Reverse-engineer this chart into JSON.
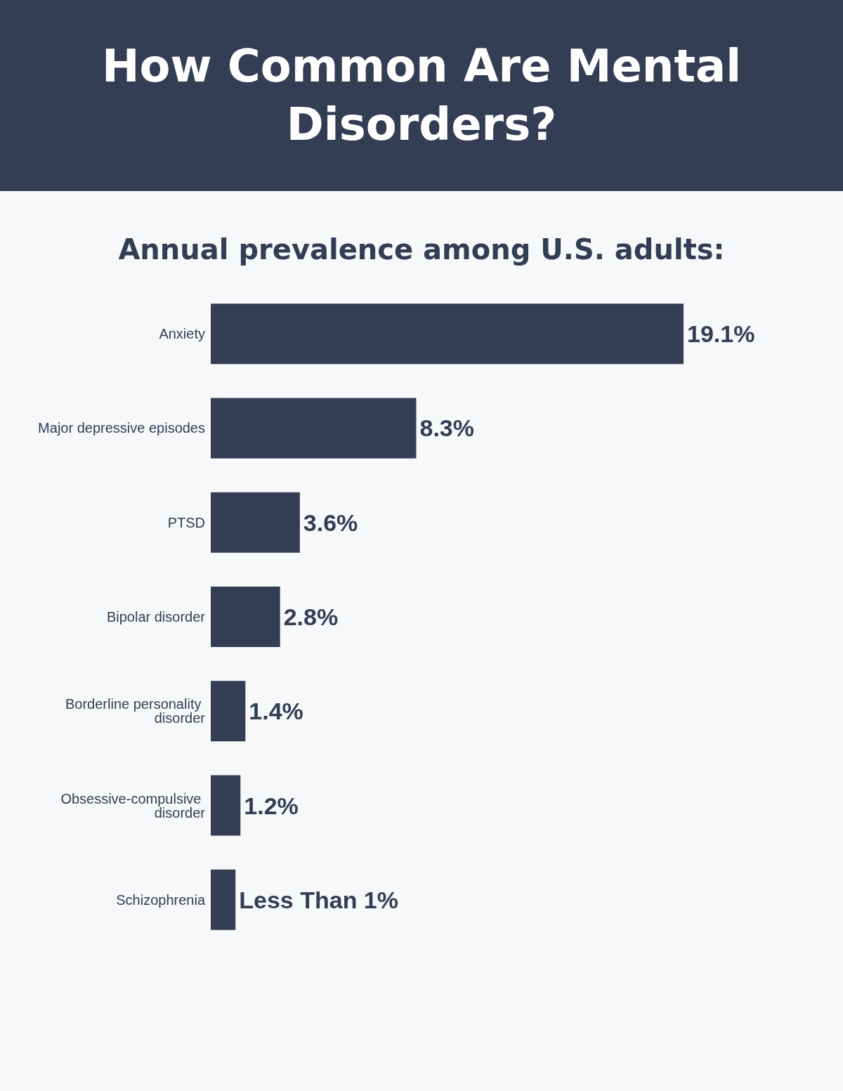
{
  "chart_data": {
    "type": "bar",
    "orientation": "horizontal",
    "title": "How Common Are Mental Disorders?",
    "subtitle": "Annual prevalence among U.S. adults:",
    "categories": [
      "Anxiety",
      "Major depressive episodes",
      "PTSD",
      "Bipolar disorder",
      "Borderline personality disorder",
      "Obsessive-compulsive disorder",
      "Schizophrenia"
    ],
    "values": [
      19.1,
      8.3,
      3.6,
      2.8,
      1.4,
      1.2,
      1
    ],
    "value_labels": [
      "19.1%",
      "8.3%",
      "3.6%",
      "2.8%",
      "1.4%",
      "1.2%",
      "Less Than 1%"
    ],
    "color": "#333d54",
    "tick_labels": "y"
  }
}
